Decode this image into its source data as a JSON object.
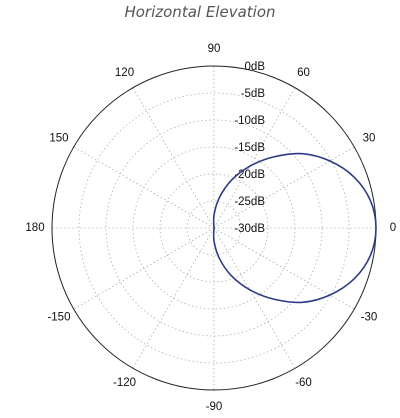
{
  "chart_data": {
    "type": "line",
    "subtype": "polar",
    "title": "Horizontal Elevation",
    "angle_unit": "degrees",
    "radial_unit": "dB",
    "radial_range": [
      -30,
      0
    ],
    "radial_ticks": [
      0,
      -5,
      -10,
      -15,
      -20,
      -25,
      -30
    ],
    "radial_tick_labels": [
      "0dB",
      "-5dB",
      "-10dB",
      "-15dB",
      "-20dB",
      "-25dB",
      "-30dB"
    ],
    "angle_ticks": [
      0,
      30,
      60,
      90,
      120,
      150,
      180,
      -150,
      -120,
      -90,
      -60,
      -30
    ],
    "angle_tick_labels": [
      "0",
      "30",
      "60",
      "90",
      "120",
      "150",
      "180",
      "-150",
      "-120",
      "-90",
      "-60",
      "-30"
    ],
    "grid": true,
    "series": [
      {
        "color": "#2e3a87",
        "angles": [
          0,
          10,
          20,
          30,
          40,
          50,
          60,
          70,
          80,
          90,
          100,
          110,
          120,
          130,
          140,
          150,
          160,
          170,
          180,
          -170,
          -160,
          -150,
          -140,
          -130,
          -120,
          -110,
          -100,
          -90,
          -80,
          -70,
          -60,
          -50,
          -40,
          -30,
          -20,
          -10
        ],
        "values": [
          0,
          -0.6,
          -2.4,
          -5.2,
          -8.6,
          -12.8,
          -16.8,
          -20.6,
          -24.3,
          -27.6,
          -30,
          -30,
          -30,
          -30,
          -30,
          -30,
          -30,
          -30,
          -30,
          -30,
          -30,
          -30,
          -30,
          -30,
          -30,
          -30,
          -30,
          -27.6,
          -24.3,
          -20.6,
          -16.8,
          -12.8,
          -8.6,
          -5.2,
          -2.4,
          -0.6
        ]
      }
    ]
  }
}
